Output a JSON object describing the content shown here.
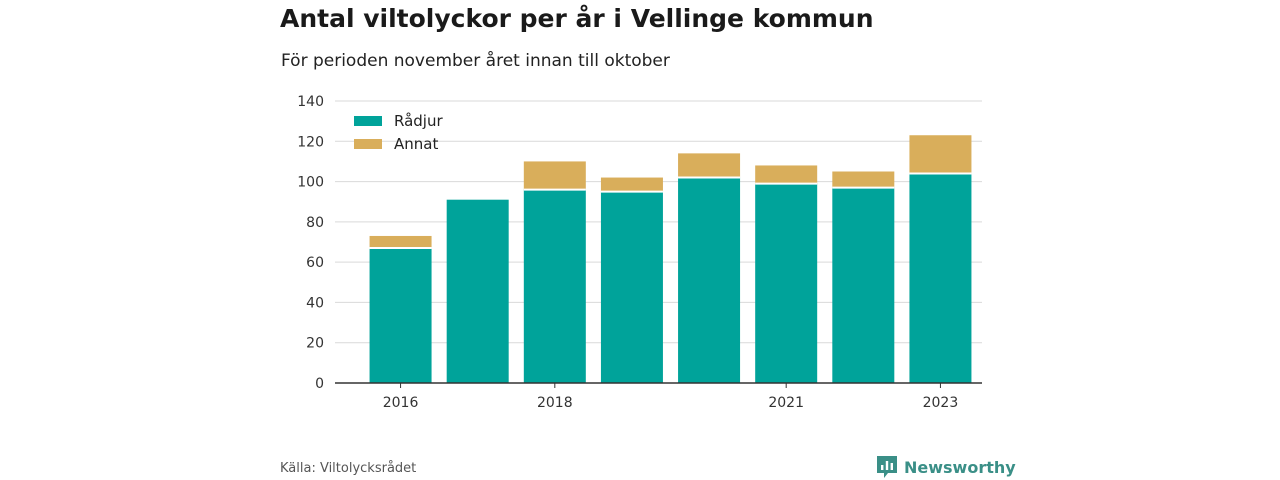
{
  "header": {
    "title": "Antal viltolyckor per år i Vellinge kommun",
    "subtitle": "För perioden november året innan till oktober"
  },
  "footer": {
    "source": "Källa: Viltolycksrådet",
    "brand": "Newsworthy"
  },
  "colors": {
    "radjur": "#00a39a",
    "annat": "#d9ae5b",
    "grid": "#d9d9d9",
    "axis": "#333333",
    "brand": "#3a8f87"
  },
  "chart_data": {
    "type": "bar",
    "stacked": true,
    "categories": [
      "2016",
      "2017",
      "2018",
      "2019",
      "2020",
      "2021",
      "2022",
      "2023"
    ],
    "tick_labels": [
      "2016",
      "",
      "2018",
      "",
      "",
      "2021",
      "",
      "2023"
    ],
    "series": [
      {
        "name": "Rådjur",
        "values": [
          67,
          91,
          96,
          95,
          102,
          99,
          97,
          104
        ]
      },
      {
        "name": "Annat",
        "values": [
          6,
          0,
          14,
          7,
          12,
          9,
          8,
          19
        ]
      }
    ],
    "ylim": [
      0,
      140
    ],
    "yticks": [
      0,
      20,
      40,
      60,
      80,
      100,
      120,
      140
    ],
    "grid": true,
    "legend_position": "top-left"
  }
}
